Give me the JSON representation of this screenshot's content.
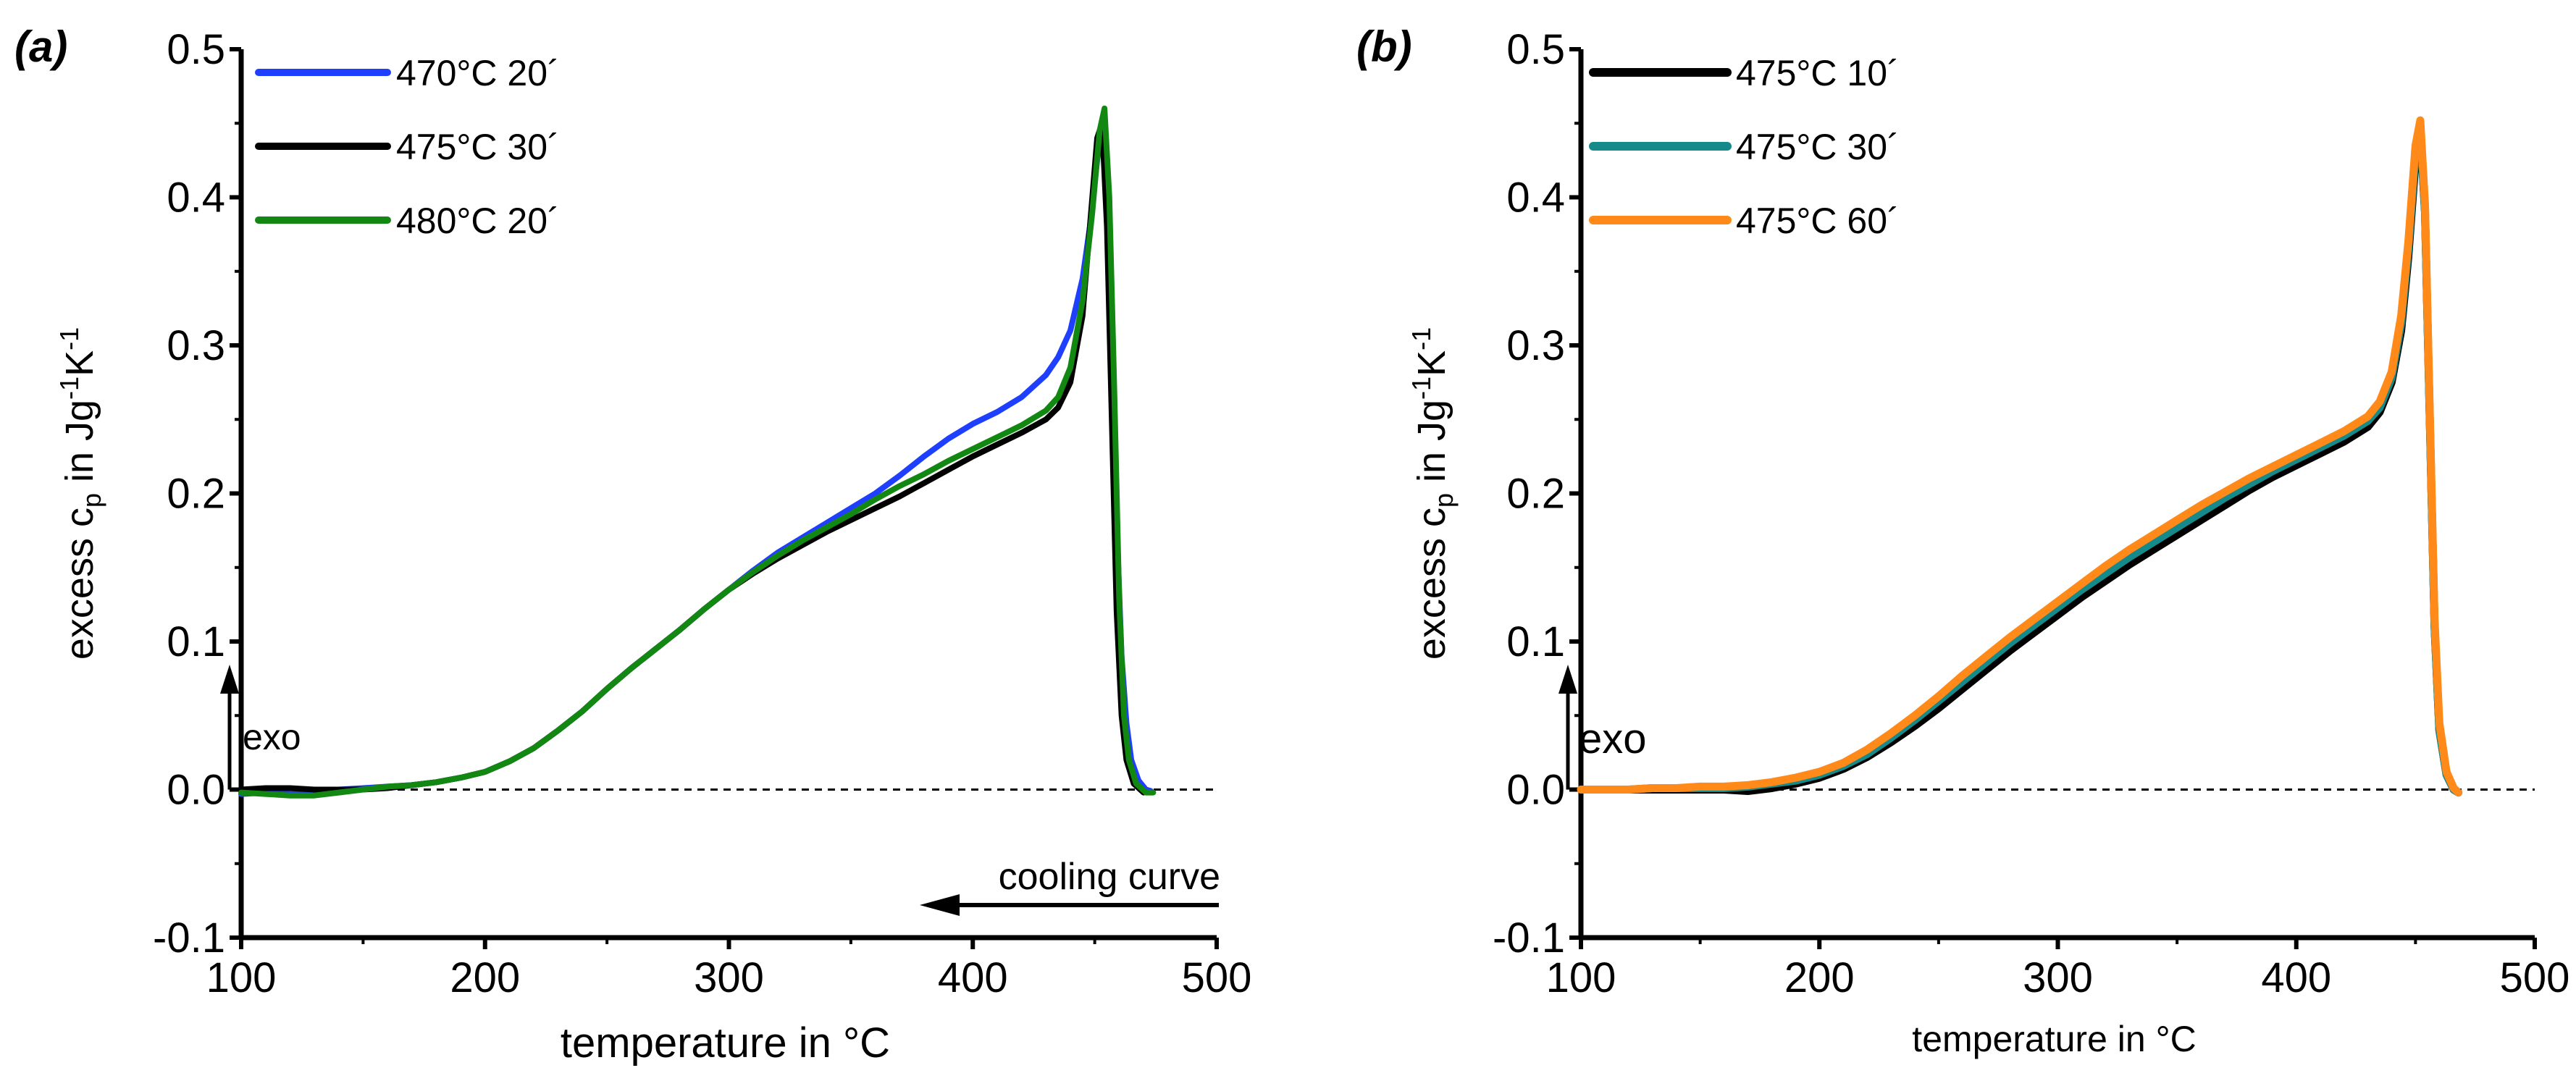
{
  "chart_data": [
    {
      "panel_label": "(a)",
      "type": "line",
      "xlabel": "temperature in °C",
      "ylabel": {
        "base": "excess c",
        "sub": "p",
        "mid": "  in Jg",
        "sup1": "-1",
        "k": "K",
        "sup2": "-1"
      },
      "xlim": [
        100,
        500
      ],
      "ylim": [
        -0.1,
        0.5
      ],
      "xticks": [
        100,
        200,
        300,
        400,
        500
      ],
      "yticks": [
        -0.1,
        0.0,
        0.1,
        0.2,
        0.3,
        0.4,
        0.5
      ],
      "ytick_labels": [
        "-0.1",
        "0.0",
        "0.1",
        "0.2",
        "0.3",
        "0.4",
        "0.5"
      ],
      "zero_line": true,
      "annotations": {
        "exo": "exo",
        "cooling": "cooling curve"
      },
      "series": [
        {
          "name": "470°C 20´",
          "color": "#1f3fff",
          "x": [
            100,
            110,
            120,
            130,
            140,
            150,
            160,
            170,
            180,
            190,
            200,
            210,
            220,
            230,
            240,
            250,
            260,
            270,
            280,
            290,
            300,
            310,
            320,
            330,
            340,
            350,
            360,
            370,
            380,
            390,
            400,
            410,
            420,
            430,
            435,
            440,
            445,
            448,
            451,
            453,
            455,
            457,
            459,
            461,
            463,
            465,
            468,
            471,
            473
          ],
          "y": [
            -0.003,
            -0.002,
            -0.003,
            -0.003,
            0.0,
            0.001,
            0.002,
            0.003,
            0.005,
            0.008,
            0.012,
            0.019,
            0.028,
            0.04,
            0.053,
            0.068,
            0.082,
            0.095,
            0.108,
            0.122,
            0.135,
            0.148,
            0.16,
            0.17,
            0.18,
            0.19,
            0.2,
            0.212,
            0.225,
            0.237,
            0.247,
            0.255,
            0.265,
            0.28,
            0.292,
            0.31,
            0.345,
            0.38,
            0.425,
            0.445,
            0.4,
            0.3,
            0.18,
            0.09,
            0.045,
            0.02,
            0.006,
            0.0,
            -0.001
          ]
        },
        {
          "name": "475°C 30´",
          "color": "#000000",
          "x": [
            100,
            110,
            120,
            130,
            140,
            150,
            160,
            170,
            180,
            190,
            200,
            210,
            220,
            230,
            240,
            250,
            260,
            270,
            280,
            290,
            300,
            310,
            320,
            330,
            340,
            350,
            360,
            370,
            380,
            390,
            400,
            410,
            420,
            430,
            435,
            440,
            445,
            448,
            451,
            453,
            455,
            457,
            459,
            461,
            463,
            466,
            470
          ],
          "y": [
            0.0,
            0.001,
            0.001,
            0.0,
            0.0,
            0.0,
            0.001,
            0.003,
            0.005,
            0.008,
            0.012,
            0.019,
            0.028,
            0.04,
            0.053,
            0.068,
            0.082,
            0.095,
            0.108,
            0.122,
            0.135,
            0.146,
            0.156,
            0.165,
            0.174,
            0.182,
            0.19,
            0.198,
            0.207,
            0.216,
            0.225,
            0.233,
            0.241,
            0.25,
            0.258,
            0.275,
            0.32,
            0.38,
            0.44,
            0.45,
            0.38,
            0.25,
            0.12,
            0.05,
            0.02,
            0.004,
            -0.002
          ]
        },
        {
          "name": "480°C 20´",
          "color": "#128812",
          "x": [
            100,
            110,
            120,
            130,
            140,
            150,
            160,
            170,
            180,
            190,
            200,
            210,
            220,
            230,
            240,
            250,
            260,
            270,
            280,
            290,
            300,
            310,
            320,
            330,
            340,
            350,
            360,
            370,
            380,
            390,
            400,
            410,
            420,
            430,
            435,
            440,
            445,
            449,
            452,
            454,
            456,
            458,
            460,
            462,
            464,
            467,
            471,
            474
          ],
          "y": [
            -0.002,
            -0.003,
            -0.004,
            -0.004,
            -0.002,
            0.0,
            0.002,
            0.003,
            0.005,
            0.008,
            0.012,
            0.019,
            0.028,
            0.04,
            0.053,
            0.068,
            0.082,
            0.095,
            0.108,
            0.122,
            0.135,
            0.147,
            0.158,
            0.168,
            0.177,
            0.186,
            0.196,
            0.205,
            0.213,
            0.222,
            0.23,
            0.238,
            0.246,
            0.256,
            0.265,
            0.285,
            0.33,
            0.39,
            0.445,
            0.46,
            0.4,
            0.27,
            0.13,
            0.05,
            0.02,
            0.004,
            -0.002,
            -0.002
          ]
        }
      ]
    },
    {
      "panel_label": "(b)",
      "type": "line",
      "xlabel": "temperature in °C",
      "ylabel": {
        "base": "excess c",
        "sub": "p",
        "mid": "  in Jg",
        "sup1": "-1",
        "k": "K",
        "sup2": "-1"
      },
      "xlim": [
        100,
        500
      ],
      "ylim": [
        -0.1,
        0.5
      ],
      "xticks": [
        100,
        200,
        300,
        400,
        500
      ],
      "yticks": [
        -0.1,
        0.0,
        0.1,
        0.2,
        0.3,
        0.4,
        0.5
      ],
      "ytick_labels": [
        "-0.1",
        "0.0",
        "0.1",
        "0.2",
        "0.3",
        "0.4",
        "0.5"
      ],
      "zero_line": true,
      "annotations": {
        "exo": "exo"
      },
      "series": [
        {
          "name": "475°C 10´",
          "color": "#000000",
          "x": [
            100,
            110,
            120,
            130,
            140,
            150,
            160,
            170,
            180,
            190,
            200,
            210,
            220,
            230,
            240,
            250,
            260,
            270,
            280,
            290,
            300,
            310,
            320,
            330,
            340,
            350,
            360,
            370,
            380,
            390,
            400,
            410,
            420,
            430,
            435,
            440,
            444,
            447,
            450,
            452,
            454,
            456,
            458,
            460,
            463,
            466,
            468
          ],
          "y": [
            0.0,
            0.0,
            0.0,
            0.0,
            0.0,
            0.0,
            0.0,
            -0.001,
            0.001,
            0.004,
            0.008,
            0.014,
            0.022,
            0.032,
            0.043,
            0.055,
            0.068,
            0.081,
            0.094,
            0.106,
            0.118,
            0.13,
            0.141,
            0.152,
            0.162,
            0.172,
            0.182,
            0.192,
            0.202,
            0.211,
            0.219,
            0.227,
            0.235,
            0.245,
            0.255,
            0.275,
            0.31,
            0.36,
            0.425,
            0.445,
            0.39,
            0.25,
            0.11,
            0.04,
            0.01,
            0.0,
            -0.002
          ]
        },
        {
          "name": "475°C 30´",
          "color": "#168a8a",
          "x": [
            100,
            110,
            120,
            130,
            140,
            150,
            160,
            170,
            180,
            190,
            200,
            210,
            220,
            230,
            240,
            250,
            260,
            270,
            280,
            290,
            300,
            310,
            320,
            330,
            340,
            350,
            360,
            370,
            380,
            390,
            400,
            410,
            420,
            430,
            435,
            440,
            444,
            447,
            450,
            452,
            454,
            456,
            458,
            460,
            463,
            466,
            468
          ],
          "y": [
            0.0,
            0.0,
            0.0,
            0.001,
            0.001,
            0.001,
            0.001,
            0.002,
            0.004,
            0.006,
            0.01,
            0.016,
            0.024,
            0.035,
            0.047,
            0.06,
            0.073,
            0.086,
            0.099,
            0.111,
            0.123,
            0.135,
            0.146,
            0.157,
            0.167,
            0.177,
            0.187,
            0.197,
            0.206,
            0.215,
            0.223,
            0.231,
            0.239,
            0.249,
            0.258,
            0.278,
            0.315,
            0.365,
            0.43,
            0.448,
            0.39,
            0.25,
            0.11,
            0.04,
            0.01,
            0.0,
            -0.002
          ]
        },
        {
          "name": "475°C 60´",
          "color": "#ff8a1a",
          "x": [
            100,
            110,
            120,
            130,
            140,
            150,
            160,
            170,
            180,
            190,
            200,
            210,
            220,
            230,
            240,
            250,
            260,
            270,
            280,
            290,
            300,
            310,
            320,
            330,
            340,
            350,
            360,
            370,
            380,
            390,
            400,
            410,
            420,
            430,
            435,
            440,
            444,
            447,
            450,
            452,
            454,
            456,
            458,
            460,
            463,
            466,
            468
          ],
          "y": [
            0.0,
            0.0,
            0.0,
            0.001,
            0.001,
            0.002,
            0.002,
            0.003,
            0.005,
            0.008,
            0.012,
            0.018,
            0.027,
            0.038,
            0.05,
            0.063,
            0.077,
            0.09,
            0.103,
            0.115,
            0.127,
            0.139,
            0.151,
            0.162,
            0.172,
            0.182,
            0.192,
            0.201,
            0.21,
            0.218,
            0.226,
            0.234,
            0.242,
            0.252,
            0.262,
            0.282,
            0.32,
            0.37,
            0.435,
            0.452,
            0.395,
            0.255,
            0.115,
            0.045,
            0.012,
            0.001,
            -0.002
          ]
        }
      ]
    }
  ]
}
